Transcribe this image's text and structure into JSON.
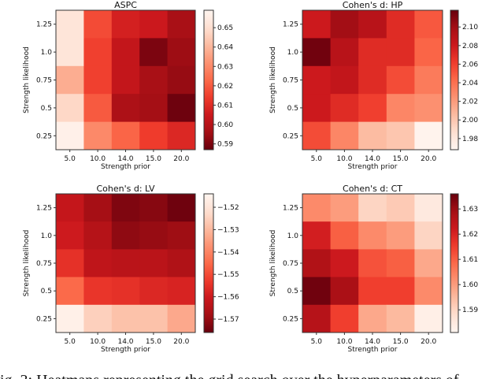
{
  "chart_data": [
    {
      "type": "heatmap",
      "title": "ASPC",
      "xlabel": "Strength prior",
      "ylabel": "Strength likelihood",
      "x_categories": [
        "5.0",
        "10.0",
        "14.0",
        "15.0",
        "20.0"
      ],
      "y_categories": [
        "1.25",
        "1.0",
        "0.75",
        "0.5",
        "0.25"
      ],
      "values": [
        [
          0.652,
          0.617,
          0.607,
          0.605,
          0.597
        ],
        [
          0.652,
          0.615,
          0.603,
          0.59,
          0.595
        ],
        [
          0.638,
          0.615,
          0.603,
          0.597,
          0.594
        ],
        [
          0.648,
          0.62,
          0.598,
          0.596,
          0.588
        ],
        [
          0.657,
          0.63,
          0.622,
          0.614,
          0.609
        ]
      ],
      "colormap": "Reds_r",
      "color_range": [
        0.587,
        0.659
      ],
      "colorbar_ticks": [
        "0.59",
        "0.60",
        "0.61",
        "0.62",
        "0.63",
        "0.64",
        "0.65"
      ]
    },
    {
      "type": "heatmap",
      "title": "Cohen's d: HP",
      "xlabel": "Strength prior",
      "ylabel": "Strength likelihood",
      "x_categories": [
        "5.0",
        "10.0",
        "14.0",
        "15.0",
        "20.0"
      ],
      "y_categories": [
        "1.25",
        "1.0",
        "0.75",
        "0.5",
        "0.25"
      ],
      "values": [
        [
          2.08,
          2.1,
          2.09,
          2.07,
          2.05
        ],
        [
          2.115,
          2.09,
          2.07,
          2.07,
          2.045
        ],
        [
          2.08,
          2.085,
          2.07,
          2.055,
          2.035
        ],
        [
          2.08,
          2.07,
          2.06,
          2.03,
          2.025
        ],
        [
          2.055,
          2.03,
          2.005,
          2.0,
          1.97
        ]
      ],
      "colormap": "Reds",
      "color_range": [
        1.968,
        2.118
      ],
      "colorbar_ticks": [
        "1.98",
        "2.00",
        "2.02",
        "2.04",
        "2.06",
        "2.08",
        "2.10"
      ]
    },
    {
      "type": "heatmap",
      "title": "Cohen's d: LV",
      "xlabel": "Strength prior",
      "ylabel": "Strength likelihood",
      "x_categories": [
        "5.0",
        "10.0",
        "14.0",
        "15.0",
        "20.0"
      ],
      "y_categories": [
        "1.25",
        "1.0",
        "0.75",
        "0.5",
        "0.25"
      ],
      "values": [
        [
          -1.562,
          -1.568,
          -1.573,
          -1.572,
          -1.575
        ],
        [
          -1.56,
          -1.565,
          -1.571,
          -1.57,
          -1.569
        ],
        [
          -1.555,
          -1.563,
          -1.564,
          -1.564,
          -1.566
        ],
        [
          -1.545,
          -1.554,
          -1.555,
          -1.557,
          -1.558
        ],
        [
          -1.516,
          -1.525,
          -1.528,
          -1.528,
          -1.533
        ]
      ],
      "colormap": "Reds_r",
      "color_range": [
        -1.576,
        -1.514
      ],
      "colorbar_ticks": [
        "−1.57",
        "−1.56",
        "−1.55",
        "−1.54",
        "−1.53",
        "−1.52"
      ]
    },
    {
      "type": "heatmap",
      "title": "Cohen's d: CT",
      "xlabel": "Strength prior",
      "ylabel": "Strength likelihood",
      "x_categories": [
        "5.0",
        "10.0",
        "14.0",
        "15.0",
        "20.0"
      ],
      "y_categories": [
        "1.25",
        "1.0",
        "0.75",
        "0.5",
        "0.25"
      ],
      "values": [
        [
          1.603,
          1.6,
          1.59,
          1.592,
          1.585
        ],
        [
          1.621,
          1.61,
          1.603,
          1.6,
          1.59
        ],
        [
          1.627,
          1.622,
          1.612,
          1.61,
          1.598
        ],
        [
          1.635,
          1.628,
          1.615,
          1.615,
          1.603
        ],
        [
          1.626,
          1.615,
          1.598,
          1.595,
          1.583
        ]
      ],
      "colormap": "Reds",
      "color_range": [
        1.581,
        1.636
      ],
      "colorbar_ticks": [
        "1.59",
        "1.60",
        "1.61",
        "1.62",
        "1.63"
      ]
    }
  ],
  "caption": "ig. 3: Heatmaps representing the grid search over the hyperparameters of"
}
